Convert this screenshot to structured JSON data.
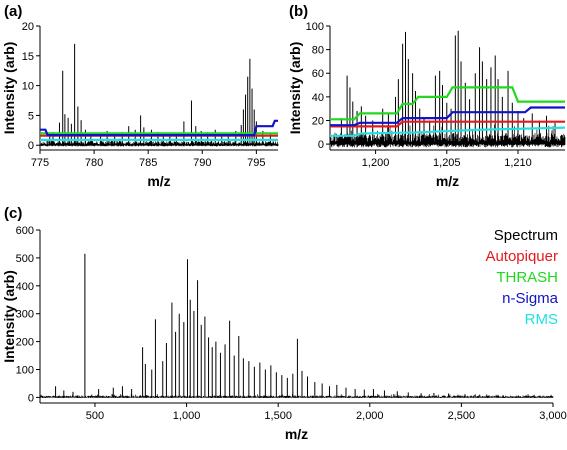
{
  "chart_data": [
    {
      "panel": "(a)",
      "type": "line",
      "xlabel": "m/z",
      "ylabel": "Intensity (arb)",
      "xlim": [
        775,
        797
      ],
      "ylim": [
        -0.8,
        20
      ],
      "xticks": [
        775,
        780,
        785,
        790,
        795
      ],
      "xtick_labels": [
        "775",
        "780",
        "785",
        "790",
        "795"
      ],
      "yticks": [
        0,
        5,
        10,
        15,
        20
      ],
      "ytick_labels": [
        "0",
        "5",
        "10",
        "15",
        "20"
      ],
      "peaks": [
        {
          "x": 775.9,
          "y": 1.5
        },
        {
          "x": 776.2,
          "y": 2.2
        },
        {
          "x": 776.8,
          "y": 3.8
        },
        {
          "x": 777.1,
          "y": 12.5
        },
        {
          "x": 777.3,
          "y": 5.2
        },
        {
          "x": 777.6,
          "y": 4.6
        },
        {
          "x": 777.9,
          "y": 3.6
        },
        {
          "x": 778.2,
          "y": 17
        },
        {
          "x": 778.5,
          "y": 6.5
        },
        {
          "x": 778.8,
          "y": 4.2
        },
        {
          "x": 779.2,
          "y": 2.6
        },
        {
          "x": 779.7,
          "y": 2.0
        },
        {
          "x": 780.6,
          "y": 1.8
        },
        {
          "x": 781.2,
          "y": 2.4
        },
        {
          "x": 781.9,
          "y": 2.0
        },
        {
          "x": 782.6,
          "y": 2.2
        },
        {
          "x": 783.2,
          "y": 3.2
        },
        {
          "x": 783.8,
          "y": 2.6
        },
        {
          "x": 784.3,
          "y": 5.0
        },
        {
          "x": 784.6,
          "y": 3.0
        },
        {
          "x": 785.3,
          "y": 2.6
        },
        {
          "x": 785.9,
          "y": 2.2
        },
        {
          "x": 786.4,
          "y": 2.0
        },
        {
          "x": 787.0,
          "y": 2.0
        },
        {
          "x": 787.6,
          "y": 1.8
        },
        {
          "x": 788.3,
          "y": 4.0
        },
        {
          "x": 789.0,
          "y": 7.5
        },
        {
          "x": 789.4,
          "y": 3.2
        },
        {
          "x": 789.9,
          "y": 2.4
        },
        {
          "x": 790.5,
          "y": 2.2
        },
        {
          "x": 791.2,
          "y": 2.6
        },
        {
          "x": 791.8,
          "y": 2.0
        },
        {
          "x": 792.4,
          "y": 1.9
        },
        {
          "x": 793.1,
          "y": 2.4
        },
        {
          "x": 793.6,
          "y": 3.4
        },
        {
          "x": 793.8,
          "y": 6.0
        },
        {
          "x": 794.0,
          "y": 8.5
        },
        {
          "x": 794.2,
          "y": 11.5
        },
        {
          "x": 794.4,
          "y": 14.5
        },
        {
          "x": 794.6,
          "y": 9.5
        },
        {
          "x": 794.8,
          "y": 6.0
        },
        {
          "x": 795.0,
          "y": 4.0
        },
        {
          "x": 795.6,
          "y": 2.4
        },
        {
          "x": 796.3,
          "y": 2.0
        }
      ],
      "noise_level": 0.6,
      "thresholds": [
        {
          "name": "Autopiquer",
          "points": [
            [
              775,
              1.6
            ],
            [
              797,
              1.6
            ]
          ]
        },
        {
          "name": "THRASH",
          "points": [
            [
              775,
              2.0
            ],
            [
              797,
              2.0
            ]
          ]
        },
        {
          "name": "n-Sigma",
          "points": [
            [
              775,
              2.6
            ],
            [
              775.5,
              2.6
            ],
            [
              775.7,
              1.7
            ],
            [
              794.8,
              1.7
            ],
            [
              795.0,
              3.2
            ],
            [
              796.5,
              3.2
            ],
            [
              796.7,
              4.1
            ],
            [
              797,
              4.1
            ]
          ]
        },
        {
          "name": "RMS",
          "points": [
            [
              775,
              0.9
            ],
            [
              797,
              0.9
            ]
          ]
        }
      ]
    },
    {
      "panel": "(b)",
      "type": "line",
      "xlabel": "m/z",
      "ylabel": "Intensity (arb)",
      "xlim": [
        1196.8,
        1213.3
      ],
      "ylim": [
        -5,
        100
      ],
      "xticks": [
        1200,
        1205,
        1210
      ],
      "xtick_labels": [
        "1,200",
        "1,205",
        "1,210"
      ],
      "yticks": [
        0,
        20,
        40,
        60,
        80,
        100
      ],
      "ytick_labels": [
        "0",
        "20",
        "40",
        "60",
        "80",
        "100"
      ],
      "peaks": [
        {
          "x": 1197.6,
          "y": 22
        },
        {
          "x": 1198.0,
          "y": 58
        },
        {
          "x": 1198.2,
          "y": 48
        },
        {
          "x": 1198.4,
          "y": 36
        },
        {
          "x": 1198.7,
          "y": 28
        },
        {
          "x": 1199.0,
          "y": 32
        },
        {
          "x": 1199.3,
          "y": 24
        },
        {
          "x": 1199.8,
          "y": 20
        },
        {
          "x": 1200.5,
          "y": 30
        },
        {
          "x": 1200.9,
          "y": 26
        },
        {
          "x": 1201.4,
          "y": 40
        },
        {
          "x": 1201.6,
          "y": 55
        },
        {
          "x": 1201.9,
          "y": 85
        },
        {
          "x": 1202.1,
          "y": 95
        },
        {
          "x": 1202.3,
          "y": 72
        },
        {
          "x": 1202.6,
          "y": 60
        },
        {
          "x": 1202.8,
          "y": 45
        },
        {
          "x": 1203.1,
          "y": 30
        },
        {
          "x": 1203.4,
          "y": 22
        },
        {
          "x": 1203.8,
          "y": 20
        },
        {
          "x": 1204.2,
          "y": 58
        },
        {
          "x": 1204.5,
          "y": 62
        },
        {
          "x": 1204.7,
          "y": 50
        },
        {
          "x": 1205.0,
          "y": 35
        },
        {
          "x": 1205.3,
          "y": 30
        },
        {
          "x": 1205.6,
          "y": 92
        },
        {
          "x": 1205.8,
          "y": 96
        },
        {
          "x": 1206.0,
          "y": 70
        },
        {
          "x": 1206.3,
          "y": 52
        },
        {
          "x": 1206.6,
          "y": 38
        },
        {
          "x": 1207.0,
          "y": 60
        },
        {
          "x": 1207.3,
          "y": 82
        },
        {
          "x": 1207.5,
          "y": 70
        },
        {
          "x": 1207.8,
          "y": 55
        },
        {
          "x": 1208.1,
          "y": 65
        },
        {
          "x": 1208.4,
          "y": 75
        },
        {
          "x": 1208.6,
          "y": 55
        },
        {
          "x": 1208.9,
          "y": 40
        },
        {
          "x": 1209.3,
          "y": 62
        },
        {
          "x": 1209.6,
          "y": 35
        },
        {
          "x": 1210.0,
          "y": 28
        },
        {
          "x": 1210.4,
          "y": 22
        },
        {
          "x": 1211.0,
          "y": 26
        },
        {
          "x": 1211.5,
          "y": 20
        },
        {
          "x": 1212.0,
          "y": 24
        },
        {
          "x": 1212.6,
          "y": 18
        }
      ],
      "noise_level": 8,
      "thresholds": [
        {
          "name": "Autopiquer",
          "points": [
            [
              1196.8,
              15
            ],
            [
              1201.5,
              15
            ],
            [
              1201.9,
              19
            ],
            [
              1213.3,
              19
            ]
          ]
        },
        {
          "name": "THRASH",
          "points": [
            [
              1196.8,
              21
            ],
            [
              1198.5,
              21
            ],
            [
              1198.9,
              26
            ],
            [
              1201.5,
              26
            ],
            [
              1201.9,
              34
            ],
            [
              1202.6,
              34
            ],
            [
              1203.0,
              40
            ],
            [
              1205.0,
              40
            ],
            [
              1205.4,
              48
            ],
            [
              1209.6,
              48
            ],
            [
              1210.0,
              36
            ],
            [
              1213.3,
              36
            ]
          ]
        },
        {
          "name": "n-Sigma",
          "points": [
            [
              1196.8,
              16
            ],
            [
              1198.5,
              16
            ],
            [
              1198.9,
              18
            ],
            [
              1201.5,
              18
            ],
            [
              1201.9,
              22
            ],
            [
              1205.0,
              22
            ],
            [
              1205.4,
              27
            ],
            [
              1210.5,
              27
            ],
            [
              1210.9,
              31
            ],
            [
              1213.3,
              31
            ]
          ]
        },
        {
          "name": "RMS",
          "points": [
            [
              1196.8,
              7
            ],
            [
              1198.5,
              7
            ],
            [
              1199.0,
              9
            ],
            [
              1203.0,
              10
            ],
            [
              1207.0,
              12
            ],
            [
              1213.3,
              14
            ]
          ]
        }
      ]
    },
    {
      "panel": "(c)",
      "type": "line",
      "xlabel": "m/z",
      "ylabel": "Intensity (arb)",
      "xlim": [
        200,
        3000
      ],
      "ylim": [
        -20,
        600
      ],
      "xticks": [
        500,
        1000,
        1500,
        2000,
        2500,
        3000
      ],
      "xtick_labels": [
        "500",
        "1,000",
        "1,500",
        "2,000",
        "2,500",
        "3,000"
      ],
      "yticks": [
        0,
        100,
        200,
        300,
        400,
        500,
        600
      ],
      "ytick_labels": [
        "0",
        "100",
        "200",
        "300",
        "400",
        "500",
        "600"
      ],
      "peaks": [
        {
          "x": 285,
          "y": 40
        },
        {
          "x": 330,
          "y": 25
        },
        {
          "x": 380,
          "y": 20
        },
        {
          "x": 445,
          "y": 515
        },
        {
          "x": 520,
          "y": 30
        },
        {
          "x": 600,
          "y": 35
        },
        {
          "x": 650,
          "y": 40
        },
        {
          "x": 700,
          "y": 30
        },
        {
          "x": 760,
          "y": 180
        },
        {
          "x": 775,
          "y": 120
        },
        {
          "x": 810,
          "y": 100
        },
        {
          "x": 830,
          "y": 280
        },
        {
          "x": 870,
          "y": 130
        },
        {
          "x": 890,
          "y": 195
        },
        {
          "x": 920,
          "y": 340
        },
        {
          "x": 940,
          "y": 235
        },
        {
          "x": 960,
          "y": 300
        },
        {
          "x": 985,
          "y": 270
        },
        {
          "x": 1005,
          "y": 495
        },
        {
          "x": 1020,
          "y": 350
        },
        {
          "x": 1040,
          "y": 310
        },
        {
          "x": 1060,
          "y": 420
        },
        {
          "x": 1080,
          "y": 260
        },
        {
          "x": 1100,
          "y": 290
        },
        {
          "x": 1120,
          "y": 215
        },
        {
          "x": 1140,
          "y": 180
        },
        {
          "x": 1160,
          "y": 200
        },
        {
          "x": 1185,
          "y": 160
        },
        {
          "x": 1210,
          "y": 190
        },
        {
          "x": 1235,
          "y": 275
        },
        {
          "x": 1260,
          "y": 150
        },
        {
          "x": 1285,
          "y": 220
        },
        {
          "x": 1310,
          "y": 140
        },
        {
          "x": 1340,
          "y": 130
        },
        {
          "x": 1370,
          "y": 110
        },
        {
          "x": 1400,
          "y": 125
        },
        {
          "x": 1430,
          "y": 100
        },
        {
          "x": 1460,
          "y": 115
        },
        {
          "x": 1490,
          "y": 90
        },
        {
          "x": 1520,
          "y": 80
        },
        {
          "x": 1550,
          "y": 70
        },
        {
          "x": 1580,
          "y": 85
        },
        {
          "x": 1605,
          "y": 210
        },
        {
          "x": 1630,
          "y": 95
        },
        {
          "x": 1660,
          "y": 75
        },
        {
          "x": 1700,
          "y": 55
        },
        {
          "x": 1740,
          "y": 50
        },
        {
          "x": 1780,
          "y": 40
        },
        {
          "x": 1820,
          "y": 45
        },
        {
          "x": 1870,
          "y": 35
        },
        {
          "x": 1920,
          "y": 30
        },
        {
          "x": 1970,
          "y": 28
        },
        {
          "x": 2020,
          "y": 30
        },
        {
          "x": 2080,
          "y": 25
        },
        {
          "x": 2150,
          "y": 22
        },
        {
          "x": 2210,
          "y": 18
        },
        {
          "x": 2280,
          "y": 15
        },
        {
          "x": 2350,
          "y": 16
        },
        {
          "x": 2430,
          "y": 14
        },
        {
          "x": 2520,
          "y": 12
        },
        {
          "x": 2600,
          "y": 10
        },
        {
          "x": 2700,
          "y": 9
        }
      ],
      "noise_level": 6,
      "legend": {
        "placement": "top-right",
        "entries": [
          {
            "label": "Spectrum",
            "color": "#000000"
          },
          {
            "label": "Autopiquer",
            "color": "#e41a1c"
          },
          {
            "label": "THRASH",
            "color": "#1fd81f"
          },
          {
            "label": "n-Sigma",
            "color": "#1212c8"
          },
          {
            "label": "RMS",
            "color": "#21e0e0"
          }
        ]
      }
    }
  ],
  "colors": {
    "Spectrum": "#000000",
    "Autopiquer": "#e41a1c",
    "THRASH": "#1fd81f",
    "n-Sigma": "#1212c8",
    "RMS": "#21e0e0"
  }
}
